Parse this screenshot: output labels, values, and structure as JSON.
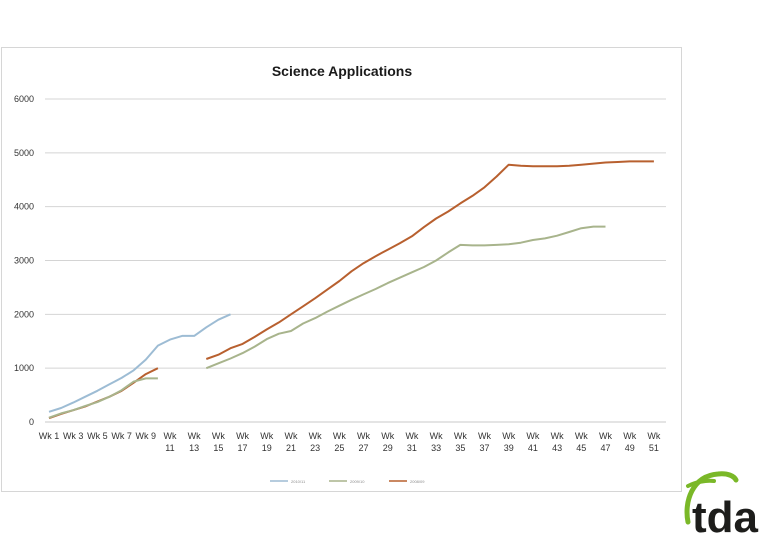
{
  "chart_data": {
    "type": "line",
    "title": "Science Applications",
    "xlabel": "",
    "ylabel": "",
    "ylim": [
      0,
      6000
    ],
    "yticks": [
      "0",
      "1000",
      "2000",
      "3000",
      "4000",
      "5000",
      "6000"
    ],
    "grid": true,
    "legend_position": "bottom",
    "x_ticks": [
      {
        "top": "Wk 1",
        "bottom": ""
      },
      {
        "top": "Wk 3",
        "bottom": ""
      },
      {
        "top": "Wk 5",
        "bottom": ""
      },
      {
        "top": "Wk 7",
        "bottom": ""
      },
      {
        "top": "Wk 9",
        "bottom": ""
      },
      {
        "top": "Wk",
        "bottom": "11"
      },
      {
        "top": "Wk",
        "bottom": "13"
      },
      {
        "top": "Wk",
        "bottom": "15"
      },
      {
        "top": "Wk",
        "bottom": "17"
      },
      {
        "top": "Wk",
        "bottom": "19"
      },
      {
        "top": "Wk",
        "bottom": "21"
      },
      {
        "top": "Wk",
        "bottom": "23"
      },
      {
        "top": "Wk",
        "bottom": "25"
      },
      {
        "top": "Wk",
        "bottom": "27"
      },
      {
        "top": "Wk",
        "bottom": "29"
      },
      {
        "top": "Wk",
        "bottom": "31"
      },
      {
        "top": "Wk",
        "bottom": "33"
      },
      {
        "top": "Wk",
        "bottom": "35"
      },
      {
        "top": "Wk",
        "bottom": "37"
      },
      {
        "top": "Wk",
        "bottom": "39"
      },
      {
        "top": "Wk",
        "bottom": "41"
      },
      {
        "top": "Wk",
        "bottom": "43"
      },
      {
        "top": "Wk",
        "bottom": "45"
      },
      {
        "top": "Wk",
        "bottom": "47"
      },
      {
        "top": "Wk",
        "bottom": "49"
      },
      {
        "top": "Wk",
        "bottom": "51"
      }
    ],
    "x": [
      1,
      2,
      3,
      4,
      5,
      6,
      7,
      8,
      9,
      10,
      11,
      12,
      13,
      14,
      15,
      16,
      17,
      18,
      19,
      20,
      21,
      22,
      23,
      24,
      25,
      26,
      27,
      28,
      29,
      30,
      31,
      32,
      33,
      34,
      35,
      36,
      37,
      38,
      39,
      40,
      41,
      42,
      43,
      44,
      45,
      46,
      47,
      48,
      49,
      50,
      51,
      52
    ],
    "series": [
      {
        "name": "2010/11",
        "color": "#9dbcd4",
        "values": [
          190,
          260,
          360,
          470,
          580,
          700,
          820,
          960,
          1160,
          1420,
          1530,
          1600,
          1600,
          1760,
          1900,
          2000,
          null,
          null,
          null,
          null,
          null,
          null,
          null,
          null,
          null,
          null,
          null,
          null,
          null,
          null,
          null,
          null,
          null,
          null,
          null,
          null,
          null,
          null,
          null,
          null,
          null,
          null,
          null,
          null,
          null,
          null,
          null,
          null,
          null,
          null,
          null,
          null
        ]
      },
      {
        "name": "2009/10",
        "color": "#a8b48c",
        "values": [
          80,
          160,
          220,
          300,
          370,
          470,
          590,
          750,
          810,
          810,
          null,
          null,
          null,
          1000,
          1090,
          1180,
          1280,
          1400,
          1540,
          1640,
          1690,
          1830,
          1930,
          2050,
          2160,
          2270,
          2370,
          2470,
          2580,
          2680,
          2780,
          2880,
          3000,
          3150,
          3290,
          3280,
          3280,
          3290,
          3300,
          3330,
          3380,
          3410,
          3460,
          3530,
          3600,
          3630,
          3630,
          null,
          null,
          null,
          null,
          null
        ]
      },
      {
        "name": "2008/09",
        "color": "#b8602f",
        "values": [
          70,
          150,
          220,
          290,
          380,
          470,
          580,
          730,
          890,
          1000,
          null,
          null,
          null,
          1170,
          1250,
          1370,
          1450,
          1580,
          1720,
          1850,
          2000,
          2150,
          2300,
          2460,
          2620,
          2800,
          2950,
          3080,
          3200,
          3320,
          3450,
          3620,
          3780,
          3910,
          4060,
          4200,
          4360,
          4560,
          4780,
          4760,
          4750,
          4750,
          4750,
          4760,
          4780,
          4800,
          4820,
          4830,
          4840,
          4840,
          4840,
          null
        ]
      }
    ]
  },
  "logo": {
    "text": "tda"
  }
}
